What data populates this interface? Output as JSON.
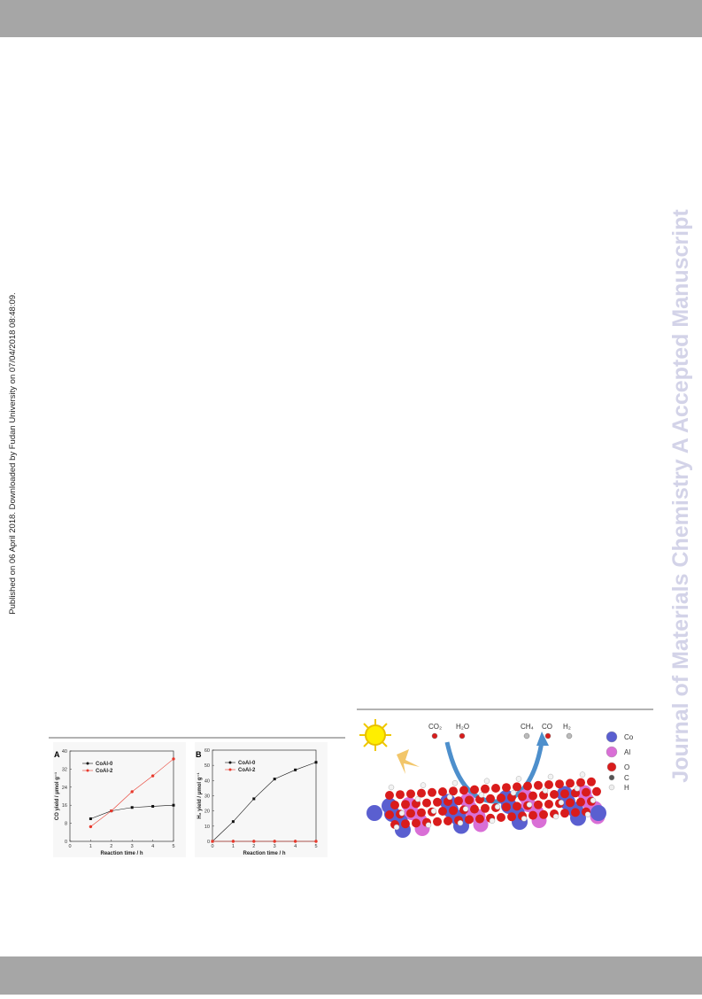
{
  "header": {},
  "sidebar": {
    "text": "Published on 06 April 2018. Downloaded by Fudan University on 07/04/2018 08:48:09."
  },
  "watermark": {
    "text": "Journal of Materials Chemistry A Accepted Manuscript"
  },
  "charts": [
    {
      "type": "line",
      "panel": "A",
      "xlabel": "Reaction time / h",
      "ylabel": "CO yield / μmol g⁻¹",
      "x": [
        1,
        2,
        3,
        4,
        5
      ],
      "xlim": [
        0,
        5
      ],
      "xticks": [
        0,
        1,
        2,
        3,
        4,
        5
      ],
      "ylim": [
        0,
        40
      ],
      "yticks": [
        0,
        8,
        16,
        24,
        32,
        40
      ],
      "series": [
        {
          "name": "CoAl-0",
          "color": "#111111",
          "values": [
            10,
            13.5,
            15,
            15.5,
            16
          ]
        },
        {
          "name": "CoAl-2",
          "color": "#e8392c",
          "values": [
            6.5,
            13.5,
            22,
            29,
            36.5
          ]
        }
      ]
    },
    {
      "type": "line",
      "panel": "B",
      "xlabel": "Reaction time / h",
      "ylabel": "H₂ yield / μmol g⁻¹",
      "x": [
        0,
        1,
        2,
        3,
        4,
        5
      ],
      "xlim": [
        0,
        5
      ],
      "xticks": [
        0,
        1,
        2,
        3,
        4,
        5
      ],
      "ylim": [
        0,
        60
      ],
      "yticks": [
        0,
        10,
        20,
        30,
        40,
        50,
        60
      ],
      "series": [
        {
          "name": "CoAl-0",
          "color": "#111111",
          "values": [
            0,
            13,
            28,
            41,
            47,
            52
          ]
        },
        {
          "name": "CoAl-2",
          "color": "#e8392c",
          "values": [
            0,
            0,
            0,
            0,
            0,
            0
          ]
        }
      ]
    }
  ],
  "illustration": {
    "molecules": [
      "CO₂",
      "H₂O",
      "CH₄",
      "CO",
      "H₂"
    ],
    "legend": [
      "Co",
      "Al",
      "O",
      "C",
      "H"
    ]
  }
}
